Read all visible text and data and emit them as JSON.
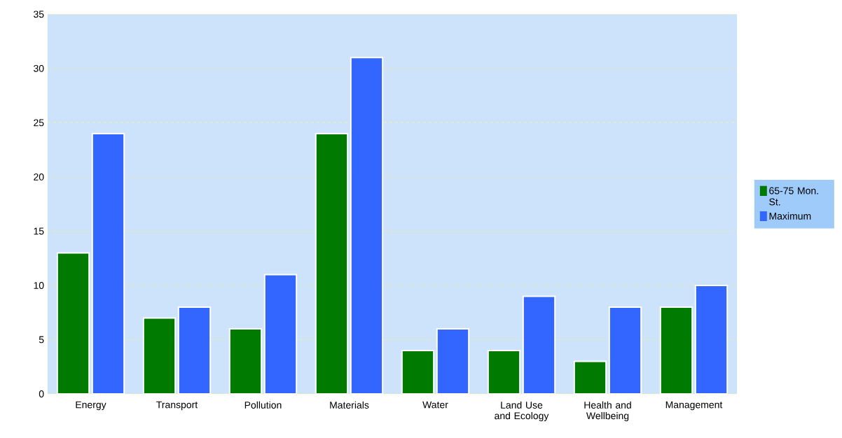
{
  "chart_data": {
    "type": "bar",
    "categories": [
      "Energy",
      "Transport",
      "Pollution",
      "Materials",
      "Water",
      "Land Use and Ecology",
      "Health and Wellbeing",
      "Management"
    ],
    "series": [
      {
        "name": "65-75 Mon. St.",
        "color": "#007a00",
        "values": [
          13,
          7,
          6,
          24,
          4,
          4,
          3,
          8
        ]
      },
      {
        "name": "Maximum",
        "color": "#3366ff",
        "values": [
          24,
          8,
          11,
          31,
          6,
          9,
          8,
          10
        ]
      }
    ],
    "ylim": [
      0,
      35
    ],
    "yticks": [
      0,
      5,
      10,
      15,
      20,
      25,
      30,
      35
    ],
    "grid": "y",
    "legend": "right"
  }
}
